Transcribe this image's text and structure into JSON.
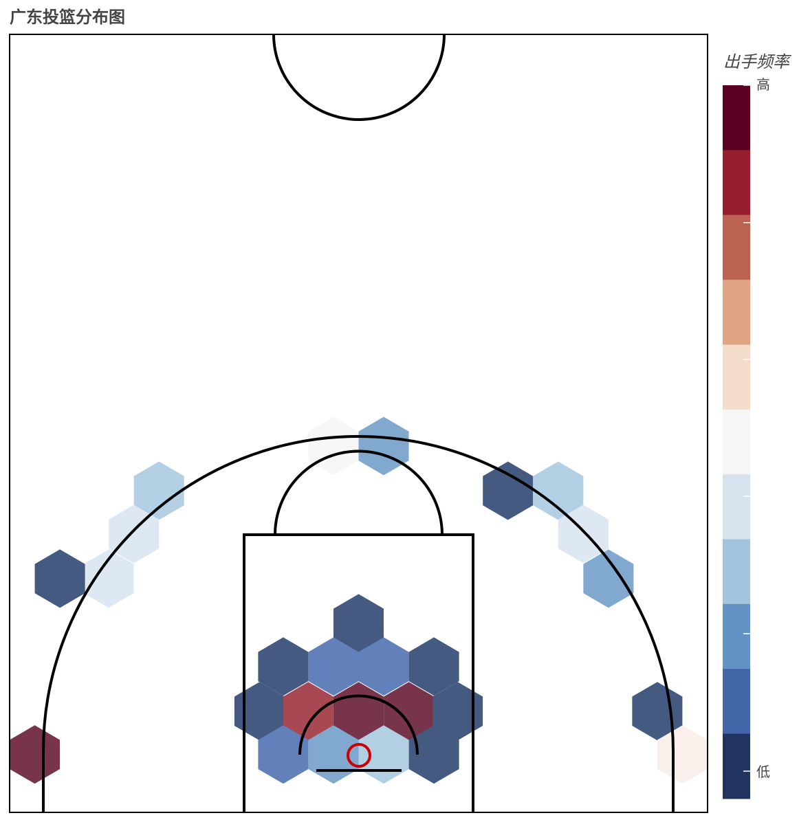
{
  "chart_data": {
    "type": "heatmap",
    "title": "广东投篮分布图",
    "xlim": [
      -250,
      250
    ],
    "ylim": [
      -52.5,
      505
    ],
    "legend": {
      "title": "出手频率",
      "high_label": "高",
      "low_label": "低",
      "position": "right",
      "colors_high_to_low": [
        "#5a0024",
        "#961e2e",
        "#bb6350",
        "#e0a482",
        "#f5dbca",
        "#f6f6f6",
        "#d6e3ef",
        "#a4c3dd",
        "#6293c4",
        "#4265a7",
        "#20345f"
      ]
    },
    "hexbins": [
      {
        "x": -18,
        "y": 210,
        "color": "#f7f7f7"
      },
      {
        "x": 18,
        "y": 210,
        "color": "#81a8cf"
      },
      {
        "x": -143,
        "y": 178,
        "color": "#b3cfe4"
      },
      {
        "x": -161,
        "y": 147,
        "color": "#dee8f2"
      },
      {
        "x": -179,
        "y": 115,
        "color": "#dee8f2"
      },
      {
        "x": -214,
        "y": 115,
        "color": "#445a80"
      },
      {
        "x": 107,
        "y": 178,
        "color": "#445a80"
      },
      {
        "x": 143,
        "y": 178,
        "color": "#b3cfe4"
      },
      {
        "x": 161,
        "y": 147,
        "color": "#dee8f2"
      },
      {
        "x": 179,
        "y": 115,
        "color": "#81a8cf"
      },
      {
        "x": 0,
        "y": 83,
        "color": "#445a80"
      },
      {
        "x": -54,
        "y": 52,
        "color": "#445a80"
      },
      {
        "x": -18,
        "y": 52,
        "color": "#6281bb"
      },
      {
        "x": 18,
        "y": 52,
        "color": "#6281bb"
      },
      {
        "x": 54,
        "y": 52,
        "color": "#445a80"
      },
      {
        "x": -71,
        "y": 20,
        "color": "#445a80"
      },
      {
        "x": -36,
        "y": 20,
        "color": "#a84852"
      },
      {
        "x": 0,
        "y": 20,
        "color": "#77344b"
      },
      {
        "x": 36,
        "y": 20,
        "color": "#77344b"
      },
      {
        "x": 71,
        "y": 20,
        "color": "#445a80"
      },
      {
        "x": -54,
        "y": -11,
        "color": "#6281bb"
      },
      {
        "x": -18,
        "y": -11,
        "color": "#81a8cf"
      },
      {
        "x": 18,
        "y": -11,
        "color": "#b3cfe4"
      },
      {
        "x": 54,
        "y": -11,
        "color": "#445a80"
      },
      {
        "x": 214,
        "y": 20,
        "color": "#445a80"
      },
      {
        "x": 232,
        "y": -11,
        "color": "#f9f0ec"
      },
      {
        "x": -232,
        "y": -11,
        "color": "#77344b"
      }
    ]
  }
}
